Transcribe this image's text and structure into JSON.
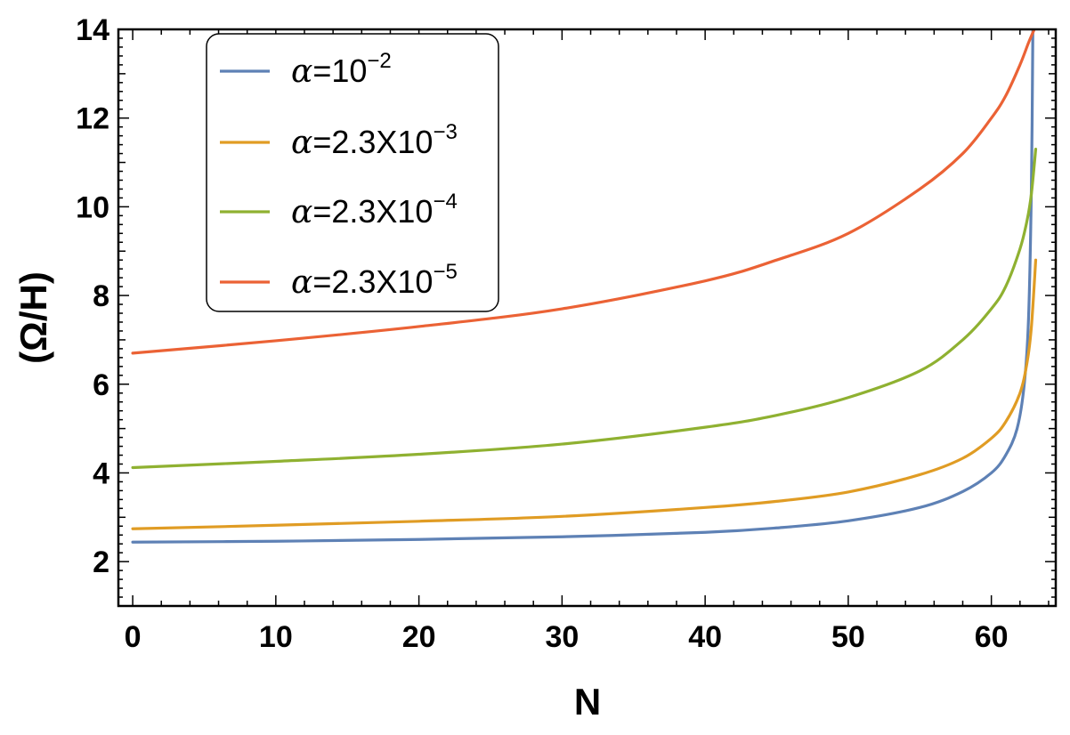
{
  "chart_data": {
    "type": "line",
    "xlabel": "N",
    "ylabel": "(Ω/H)",
    "xlim": [
      -1,
      64.5
    ],
    "ylim": [
      1,
      14
    ],
    "x_ticks": [
      0,
      10,
      20,
      30,
      40,
      50,
      60
    ],
    "y_ticks": [
      2,
      4,
      6,
      8,
      10,
      12,
      14
    ],
    "grid": false,
    "legend_position": "top-left",
    "series": [
      {
        "legend": {
          "prefix": "α=",
          "mantissa": "10",
          "exponent": "−2"
        },
        "color": "#5e81b5",
        "x": [
          0,
          10,
          20,
          30,
          40,
          45,
          50,
          55,
          58,
          60,
          61,
          61.8,
          62.3,
          62.6,
          62.8,
          62.9
        ],
        "y": [
          2.44,
          2.46,
          2.5,
          2.56,
          2.66,
          2.76,
          2.92,
          3.22,
          3.58,
          4.0,
          4.4,
          5.0,
          6.0,
          7.5,
          10.5,
          14.0
        ]
      },
      {
        "legend": {
          "prefix": "α=",
          "mantissa": "2.3X10",
          "exponent": "−3"
        },
        "color": "#e09c24",
        "x": [
          0,
          10,
          20,
          30,
          40,
          45,
          50,
          55,
          58,
          60,
          61,
          62,
          62.5,
          62.8,
          63.1
        ],
        "y": [
          2.74,
          2.82,
          2.91,
          3.02,
          3.22,
          3.36,
          3.57,
          3.96,
          4.33,
          4.78,
          5.15,
          5.8,
          6.5,
          7.3,
          8.8
        ]
      },
      {
        "legend": {
          "prefix": "α=",
          "mantissa": "2.3X10",
          "exponent": "−4"
        },
        "color": "#8fb131",
        "x": [
          0,
          10,
          20,
          30,
          40,
          45,
          50,
          55,
          58,
          60,
          61,
          62,
          62.5,
          62.8,
          63.1
        ],
        "y": [
          4.12,
          4.26,
          4.42,
          4.65,
          5.03,
          5.3,
          5.7,
          6.3,
          7.0,
          7.7,
          8.2,
          9.05,
          9.7,
          10.3,
          11.3
        ]
      },
      {
        "legend": {
          "prefix": "α=",
          "mantissa": "2.3X10",
          "exponent": "−5"
        },
        "color": "#eb6235",
        "x": [
          0,
          10,
          20,
          30,
          40,
          45,
          50,
          55,
          58,
          60,
          61,
          62,
          62.6,
          63.0
        ],
        "y": [
          6.7,
          6.98,
          7.3,
          7.7,
          8.33,
          8.8,
          9.4,
          10.4,
          11.2,
          12.0,
          12.5,
          13.2,
          13.7,
          14.0
        ]
      }
    ]
  }
}
